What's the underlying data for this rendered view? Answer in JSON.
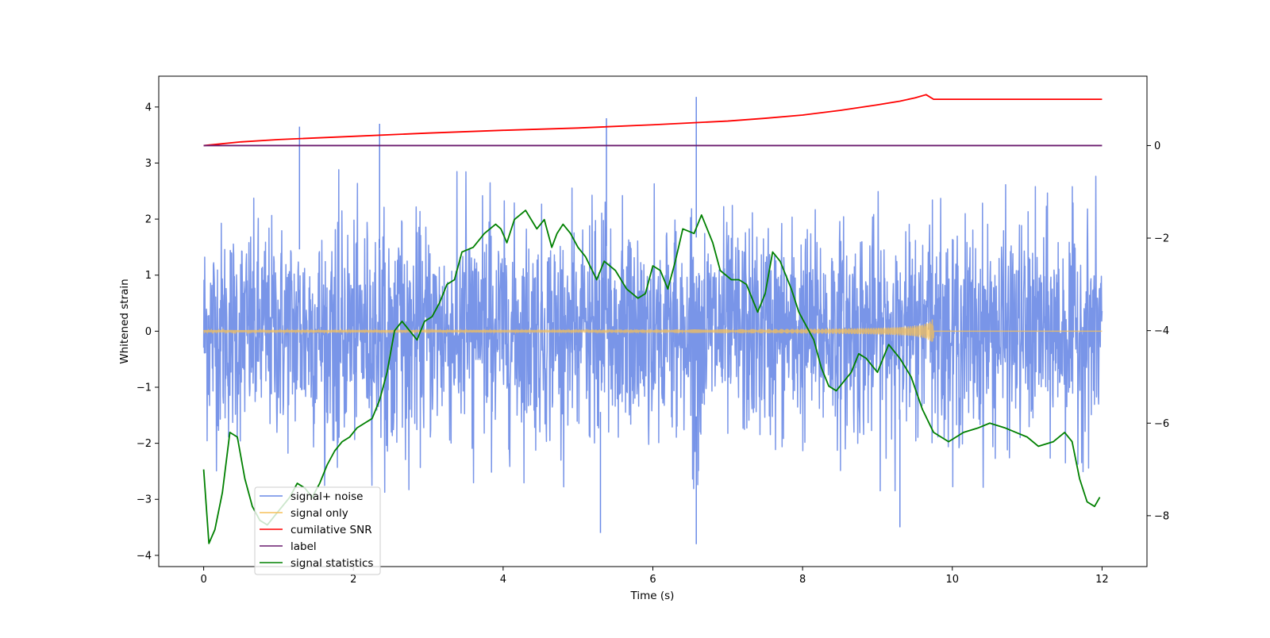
{
  "chart_data": {
    "type": "line",
    "title": "",
    "xlabel": "Time (s)",
    "ylabel": "Whitened strain",
    "y2label": "",
    "xlim": [
      -0.6,
      12.6
    ],
    "ylim": [
      -4.2,
      4.55
    ],
    "y2lim": [
      -9.1,
      1.5
    ],
    "x_ticks": [
      0,
      2,
      4,
      6,
      8,
      10,
      12
    ],
    "y_ticks": [
      -4,
      -3,
      -2,
      -1,
      0,
      1,
      2,
      3,
      4
    ],
    "y2_ticks": [
      -8,
      -6,
      -4,
      -2,
      0
    ],
    "grid": false,
    "legend_position": "lower-left",
    "series": [
      {
        "name": "signal+ noise",
        "axis": "left",
        "color": "#6a8ae6",
        "description": "whitened noise from t=0 to t=12, amplitude about ±2.5 with spikes up to about 4.2 and down to about -3.8",
        "x_range": [
          0,
          12
        ],
        "spikes": [
          {
            "x": 1.28,
            "y": 3.65
          },
          {
            "x": 2.35,
            "y": 3.7
          },
          {
            "x": 5.38,
            "y": 3.8
          },
          {
            "x": 6.58,
            "y": 4.18
          },
          {
            "x": 5.3,
            "y": -3.6
          },
          {
            "x": 6.58,
            "y": -3.8
          },
          {
            "x": 9.3,
            "y": -3.5
          }
        ]
      },
      {
        "name": "signal only",
        "axis": "left",
        "color": "#f5c05a",
        "description": "chirp signal with amplitude growing from 0 to about 0.25 near t=9.75, then zero",
        "x_range": [
          0,
          12
        ],
        "chirp_end": 9.75,
        "peak_amplitude": 0.25
      },
      {
        "name": "cumilative SNR",
        "axis": "right",
        "color": "#ff0000",
        "x": [
          0,
          0.5,
          1,
          2,
          3,
          4,
          5,
          6,
          7,
          7.5,
          8,
          8.5,
          9,
          9.3,
          9.5,
          9.65,
          9.75,
          10,
          11,
          12
        ],
        "y": [
          0,
          0.08,
          0.13,
          0.2,
          0.27,
          0.33,
          0.38,
          0.45,
          0.53,
          0.59,
          0.66,
          0.76,
          0.88,
          0.96,
          1.03,
          1.1,
          1.0,
          1.0,
          1.0,
          1.0
        ]
      },
      {
        "name": "label",
        "axis": "right",
        "color": "#6a1b6e",
        "x": [
          0,
          12
        ],
        "y": [
          0,
          0
        ]
      },
      {
        "name": "signal statistics",
        "axis": "right",
        "color": "#008000",
        "x": [
          0,
          0.07,
          0.15,
          0.25,
          0.35,
          0.45,
          0.55,
          0.65,
          0.75,
          0.85,
          0.95,
          1.05,
          1.15,
          1.25,
          1.35,
          1.45,
          1.55,
          1.65,
          1.75,
          1.85,
          1.95,
          2.05,
          2.15,
          2.25,
          2.35,
          2.45,
          2.55,
          2.65,
          2.75,
          2.85,
          2.95,
          3.05,
          3.15,
          3.25,
          3.35,
          3.45,
          3.6,
          3.75,
          3.9,
          3.97,
          4.05,
          4.15,
          4.3,
          4.45,
          4.55,
          4.65,
          4.72,
          4.8,
          4.9,
          5.0,
          5.1,
          5.25,
          5.35,
          5.5,
          5.65,
          5.8,
          5.9,
          6.0,
          6.1,
          6.2,
          6.3,
          6.4,
          6.55,
          6.65,
          6.8,
          6.9,
          7.05,
          7.15,
          7.25,
          7.4,
          7.5,
          7.6,
          7.7,
          7.85,
          7.95,
          8.05,
          8.15,
          8.25,
          8.35,
          8.45,
          8.55,
          8.65,
          8.75,
          8.85,
          9.0,
          9.15,
          9.3,
          9.45,
          9.6,
          9.75,
          9.95,
          10.15,
          10.35,
          10.5,
          10.7,
          10.85,
          11.0,
          11.15,
          11.35,
          11.5,
          11.6,
          11.7,
          11.8,
          11.9,
          11.97
        ],
        "y": [
          -7.0,
          -8.6,
          -8.3,
          -7.5,
          -6.2,
          -6.3,
          -7.2,
          -7.8,
          -8.1,
          -8.2,
          -8.0,
          -7.8,
          -7.6,
          -7.3,
          -7.4,
          -7.6,
          -7.3,
          -6.9,
          -6.6,
          -6.4,
          -6.3,
          -6.1,
          -6.0,
          -5.9,
          -5.5,
          -4.9,
          -4.0,
          -3.8,
          -4.0,
          -4.2,
          -3.8,
          -3.7,
          -3.4,
          -3.0,
          -2.9,
          -2.3,
          -2.2,
          -1.9,
          -1.7,
          -1.8,
          -2.1,
          -1.6,
          -1.4,
          -1.8,
          -1.6,
          -2.2,
          -1.9,
          -1.7,
          -1.9,
          -2.2,
          -2.4,
          -2.9,
          -2.5,
          -2.7,
          -3.1,
          -3.3,
          -3.2,
          -2.6,
          -2.7,
          -3.1,
          -2.5,
          -1.8,
          -1.9,
          -1.5,
          -2.1,
          -2.7,
          -2.9,
          -2.9,
          -3.0,
          -3.6,
          -3.2,
          -2.3,
          -2.5,
          -3.1,
          -3.6,
          -3.9,
          -4.2,
          -4.8,
          -5.2,
          -5.3,
          -5.1,
          -4.9,
          -4.5,
          -4.6,
          -4.9,
          -4.3,
          -4.6,
          -5.0,
          -5.7,
          -6.2,
          -6.4,
          -6.2,
          -6.1,
          -6.0,
          -6.1,
          -6.2,
          -6.3,
          -6.5,
          -6.4,
          -6.2,
          -6.4,
          -7.2,
          -7.7,
          -7.8,
          -7.6
        ]
      }
    ]
  },
  "legend": {
    "items": [
      {
        "label": "signal+ noise",
        "color": "#6a8ae6"
      },
      {
        "label": "signal only",
        "color": "#f5c05a"
      },
      {
        "label": "cumilative SNR",
        "color": "#ff0000"
      },
      {
        "label": "label",
        "color": "#6a1b6e"
      },
      {
        "label": "signal statistics",
        "color": "#008000"
      }
    ]
  }
}
